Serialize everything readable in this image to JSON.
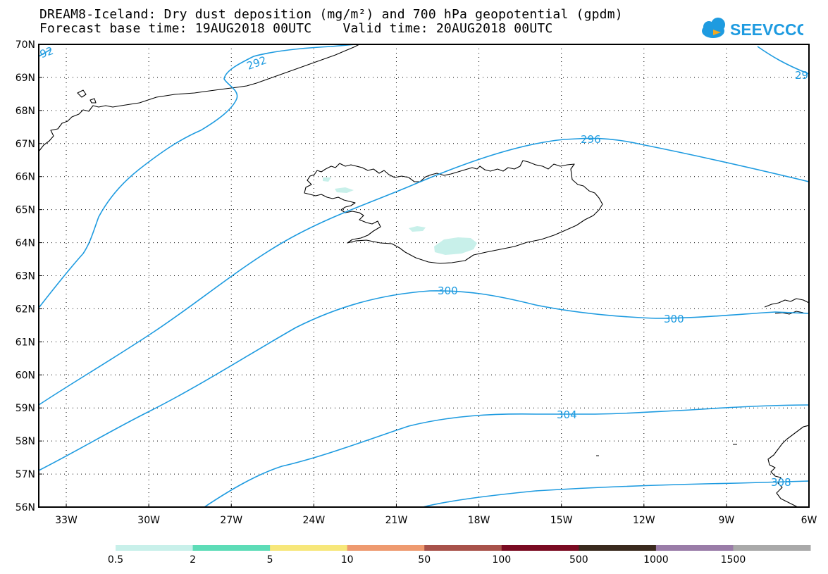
{
  "title": {
    "line1": "DREAM8-Iceland: Dry dust deposition (mg/m²) and 700 hPa geopotential (gpdm)",
    "line2": "Forecast base time: 19AUG2018 00UTC    Valid time: 20AUG2018 00UTC"
  },
  "logo": {
    "text": "SEEVCCC",
    "icon": "cloud-icon",
    "color": "#1e9be0"
  },
  "map": {
    "lon_range": [
      -34.0,
      -6.0
    ],
    "lat_range": [
      56.0,
      70.0
    ],
    "lat_labels": [
      "70N",
      "69N",
      "68N",
      "67N",
      "66N",
      "65N",
      "64N",
      "63N",
      "62N",
      "61N",
      "60N",
      "59N",
      "58N",
      "57N",
      "56N"
    ],
    "lon_labels": [
      "33W",
      "30W",
      "27W",
      "24W",
      "21W",
      "18W",
      "15W",
      "12W",
      "9W",
      "6W"
    ],
    "contour_color": "#1e9be0",
    "contours": [
      {
        "value": 292,
        "labels": [
          "292",
          "92",
          "29"
        ]
      },
      {
        "value": 296,
        "labels": [
          "296"
        ]
      },
      {
        "value": 300,
        "labels": [
          "300",
          "300"
        ]
      },
      {
        "value": 304,
        "labels": [
          "304"
        ]
      },
      {
        "value": 308,
        "labels": [
          "308"
        ]
      }
    ]
  },
  "colorbar": {
    "colors": [
      "#c8f0ea",
      "#5ddcb7",
      "#f7e77a",
      "#ee9a70",
      "#a8524a",
      "#7a0b22",
      "#3a2a1e",
      "#9a7ca8",
      "#a9a9a9"
    ],
    "labels": [
      "0.5",
      "2",
      "5",
      "10",
      "50",
      "100",
      "500",
      "1000",
      "1500"
    ]
  }
}
